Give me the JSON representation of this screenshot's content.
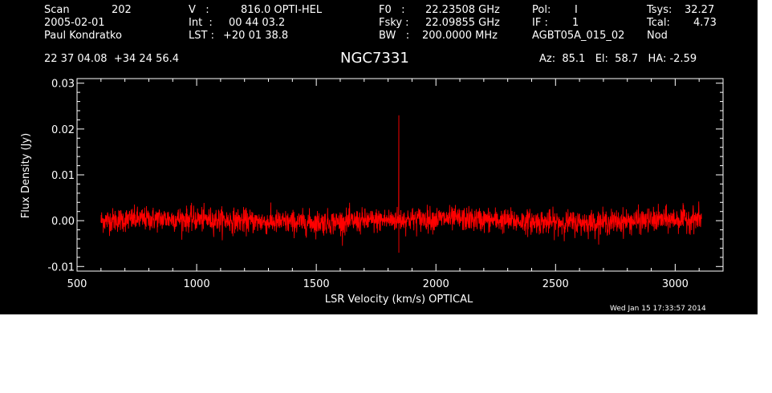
{
  "header": {
    "col1": {
      "scan_label": "Scan",
      "scan_value": "202",
      "date": "2005-02-01",
      "observer": "Paul Kondratko"
    },
    "col2": {
      "v_label": "V   :",
      "v_value": "816.0 OPTI-HEL",
      "int_label": "Int  :",
      "int_value": "00 44 03.2",
      "lst_label": "LST :",
      "lst_value": "+20 01 38.8"
    },
    "col3": {
      "f0_label": "F0   :",
      "f0_value": "22.23508 GHz",
      "fsky_label": "Fsky :",
      "fsky_value": "22.09855 GHz",
      "bw_label": "BW   :",
      "bw_value": "200.0000 MHz"
    },
    "col4": {
      "pol_label": "Pol:",
      "pol_value": "I",
      "if_label": "IF :",
      "if_value": "1",
      "project": "AGBT05A_015_02"
    },
    "col5": {
      "tsys_label": "Tsys:",
      "tsys_value": "32.27",
      "tcal_label": "Tcal:",
      "tcal_value": "4.73",
      "mode": "Nod"
    },
    "coords": "22 37 04.08  +34 24 56.4",
    "source": "NGC7331",
    "az_el_ha": "Az:  85.1   El:  58.7   HA: -2.59"
  },
  "footer_timestamp": "Wed Jan 15 17:33:57 2014",
  "colors": {
    "background": "#000000",
    "axes": "#ffffff",
    "series": "#ff0000"
  },
  "chart_data": {
    "type": "line",
    "xlabel": "LSR Velocity (km/s) OPTICAL",
    "ylabel": "Flux Density (Jy)",
    "xlim": [
      500,
      3200
    ],
    "ylim": [
      -0.011,
      0.031
    ],
    "x_ticks": [
      "500",
      "1000",
      "1500",
      "2000",
      "2500",
      "3000"
    ],
    "y_ticks": [
      "0.03",
      "0.02",
      "0.01",
      "0.00",
      "-0.01"
    ],
    "series": [
      {
        "x_range": [
          600,
          3110
        ],
        "noise_rms_jy": 0.0013,
        "baseline_jy": 0.0,
        "spike": {
          "x": 1845,
          "y": 0.023
        }
      }
    ]
  }
}
